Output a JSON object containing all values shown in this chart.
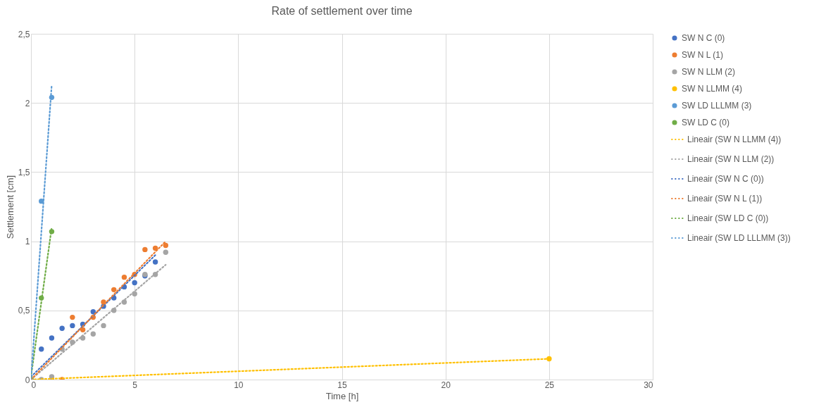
{
  "chart_data": {
    "type": "scatter",
    "title": "Rate of settlement over time",
    "xlabel": "Time [h]",
    "ylabel": "Settlement [cm]",
    "xlim": [
      0,
      30
    ],
    "xticks": [
      0,
      5,
      10,
      15,
      20,
      25,
      30
    ],
    "ylim": [
      0,
      2.5
    ],
    "yticks": [
      0,
      1,
      2,
      {
        "value": 0.5,
        "label": "0,5"
      },
      {
        "value": 1.5,
        "label": "1,5"
      },
      {
        "value": 2.5,
        "label": "2,5"
      }
    ],
    "grid": true,
    "legend": "right",
    "marker": "circle",
    "series": [
      {
        "name": "SW N C (0)",
        "color": "#4472c4",
        "x": [
          0.5,
          1,
          1.5,
          2,
          2.5,
          3,
          3.5,
          4,
          4.5,
          5,
          5.5,
          6
        ],
        "values": [
          0.22,
          0.3,
          0.37,
          0.39,
          0.4,
          0.49,
          0.53,
          0.59,
          0.67,
          0.7,
          0.75,
          0.85
        ]
      },
      {
        "name": "SW N L (1)",
        "color": "#ed7d31",
        "x": [
          1,
          1.5,
          2,
          2.5,
          3,
          3.5,
          4,
          4.5,
          5,
          5.5,
          6,
          6.5
        ],
        "values": [
          0,
          0,
          0.45,
          0.36,
          0.45,
          0.56,
          0.65,
          0.74,
          0.76,
          0.94,
          0.95,
          0.97
        ]
      },
      {
        "name": "SW N LLM (2)",
        "color": "#a5a5a5",
        "x": [
          0.5,
          1,
          1.5,
          2,
          2.5,
          3,
          3.5,
          4,
          4.5,
          5,
          5.5,
          6,
          6.5
        ],
        "values": [
          0,
          0.02,
          0.22,
          0.27,
          0.3,
          0.33,
          0.39,
          0.5,
          0.56,
          0.62,
          0.76,
          0.76,
          0.92
        ]
      },
      {
        "name": "SW N LLMM (4)",
        "color": "#ffc000",
        "x": [
          25
        ],
        "values": [
          0.15
        ]
      },
      {
        "name": "SW LD LLLMM (3)",
        "color": "#5b9bd5",
        "x": [
          0,
          0.5,
          1
        ],
        "values": [
          0,
          1.29,
          2.04
        ]
      },
      {
        "name": "SW LD C (0)",
        "color": "#70ad47",
        "x": [
          0,
          0.5,
          1
        ],
        "values": [
          0,
          0.59,
          1.07
        ]
      },
      {
        "name": "Lineair (SW N LLMM (4))",
        "type": "line",
        "marker": "none",
        "line_style": "dotted",
        "color": "#ffc000",
        "x": [
          0,
          25
        ],
        "values": [
          0,
          0.15
        ]
      },
      {
        "name": "Lineair (SW N LLM (2))",
        "type": "line",
        "marker": "none",
        "line_style": "dotted",
        "color": "#a5a5a5",
        "x": [
          0,
          6.5
        ],
        "values": [
          0,
          0.83
        ]
      },
      {
        "name": "Lineair (SW N C (0))",
        "type": "line",
        "marker": "none",
        "line_style": "dotted",
        "color": "#4472c4",
        "x": [
          0,
          6
        ],
        "values": [
          0.02,
          0.9
        ]
      },
      {
        "name": "Lineair (SW N L (1))",
        "type": "line",
        "marker": "none",
        "line_style": "dotted",
        "color": "#ed7d31",
        "x": [
          0,
          6.5
        ],
        "values": [
          0,
          1
        ]
      },
      {
        "name": "Lineair (SW LD C (0))",
        "type": "line",
        "marker": "none",
        "line_style": "dotted",
        "color": "#70ad47",
        "x": [
          0,
          1
        ],
        "values": [
          0.02,
          1.1
        ]
      },
      {
        "name": "Lineair (SW LD LLLMM (3))",
        "type": "line",
        "marker": "none",
        "line_style": "dotted",
        "color": "#5b9bd5",
        "x": [
          0,
          1
        ],
        "values": [
          0,
          2.13
        ]
      }
    ]
  }
}
